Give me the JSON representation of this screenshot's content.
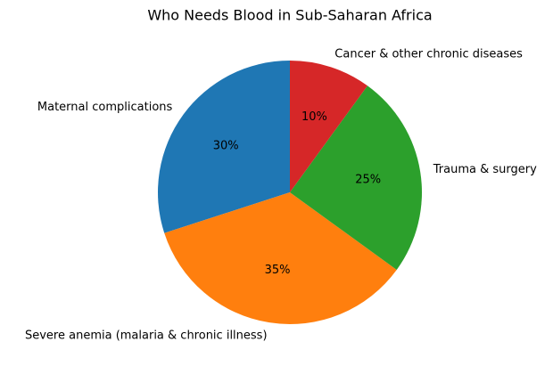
{
  "chart_data": {
    "type": "pie",
    "title": "Who Needs Blood in Sub-Saharan Africa",
    "categories": [
      "Maternal complications",
      "Severe anemia (malaria & chronic illness)",
      "Trauma & surgery",
      "Cancer & other chronic diseases"
    ],
    "values": [
      30,
      35,
      25,
      10
    ],
    "value_labels": [
      "30%",
      "35%",
      "25%",
      "10%"
    ],
    "colors": [
      "#1f77b4",
      "#ff7f0e",
      "#2ca02c",
      "#d62728"
    ]
  }
}
